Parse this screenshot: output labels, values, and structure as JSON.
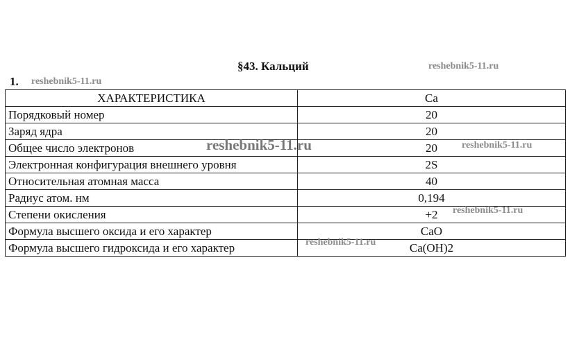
{
  "title": "§43. Кальций",
  "task_number": "1.",
  "watermark": "reshebnik5-11.ru",
  "table": {
    "header": [
      "ХАРАКТЕРИСТИКА",
      "Ca"
    ],
    "rows": [
      [
        "Порядковый номер",
        "20"
      ],
      [
        "Заряд ядра",
        "20"
      ],
      [
        "Общее число электронов",
        "20"
      ],
      [
        "Электронная конфигурация внешнего уровня",
        "2S"
      ],
      [
        "Относительная атомная масса",
        "40"
      ],
      [
        "Радиус атом. нм",
        "0,194"
      ],
      [
        "Степени окисления",
        "+2"
      ],
      [
        "Формула высшего оксида и его характер",
        "CaO"
      ],
      [
        "Формула высшего гидроксида и его характер",
        "Ca(OH)2"
      ]
    ]
  }
}
